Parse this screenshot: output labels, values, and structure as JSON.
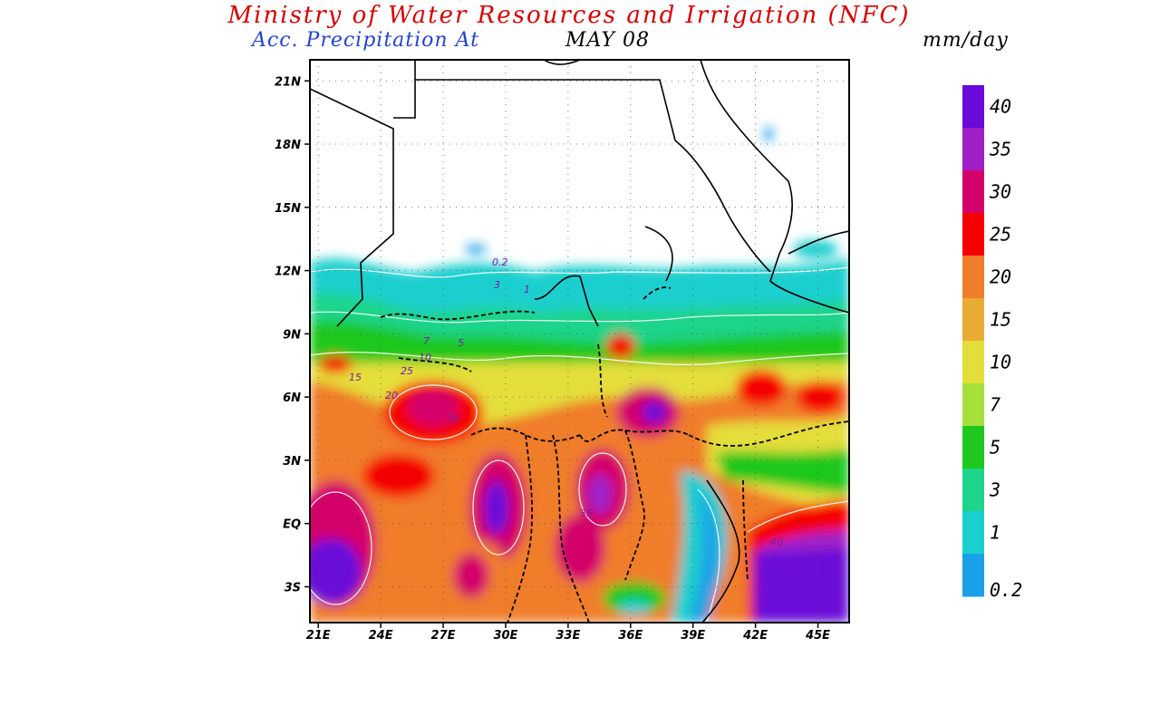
{
  "header": {
    "title": "Ministry of Water Resources and Irrigation (NFC)",
    "subtitle_prefix": "Acc. Precipitation  At",
    "date": "MAY 08",
    "units": "mm/day"
  },
  "map": {
    "lat_ticks": [
      "21N",
      "18N",
      "15N",
      "12N",
      "9N",
      "6N",
      "3N",
      "EQ",
      "3S"
    ],
    "lon_ticks": [
      "21E",
      "24E",
      "27E",
      "30E",
      "33E",
      "36E",
      "39E",
      "42E",
      "45E"
    ],
    "lat_values": [
      21,
      18,
      15,
      12,
      9,
      6,
      3,
      0,
      -3
    ],
    "lon_values": [
      21,
      24,
      27,
      30,
      33,
      36,
      39,
      42,
      45
    ],
    "extent": {
      "lon_min": 20.6,
      "lon_max": 46.5,
      "lat_min": -4.7,
      "lat_max": 22.0
    },
    "contour_labels": [
      "0.2",
      "1",
      "3",
      "5",
      "7",
      "10",
      "15",
      "20",
      "25",
      "30",
      "35",
      "40"
    ]
  },
  "legend": {
    "levels": [
      "40",
      "35",
      "30",
      "25",
      "20",
      "15",
      "10",
      "7",
      "5",
      "3",
      "1",
      "0.2"
    ],
    "colors": [
      "#6a0ad9",
      "#a020c8",
      "#d4006a",
      "#f50000",
      "#f07d2a",
      "#e8ab33",
      "#e4de3a",
      "#a6e03a",
      "#1ec81e",
      "#1ed48a",
      "#1ccfcf",
      "#1aa0e8"
    ]
  }
}
